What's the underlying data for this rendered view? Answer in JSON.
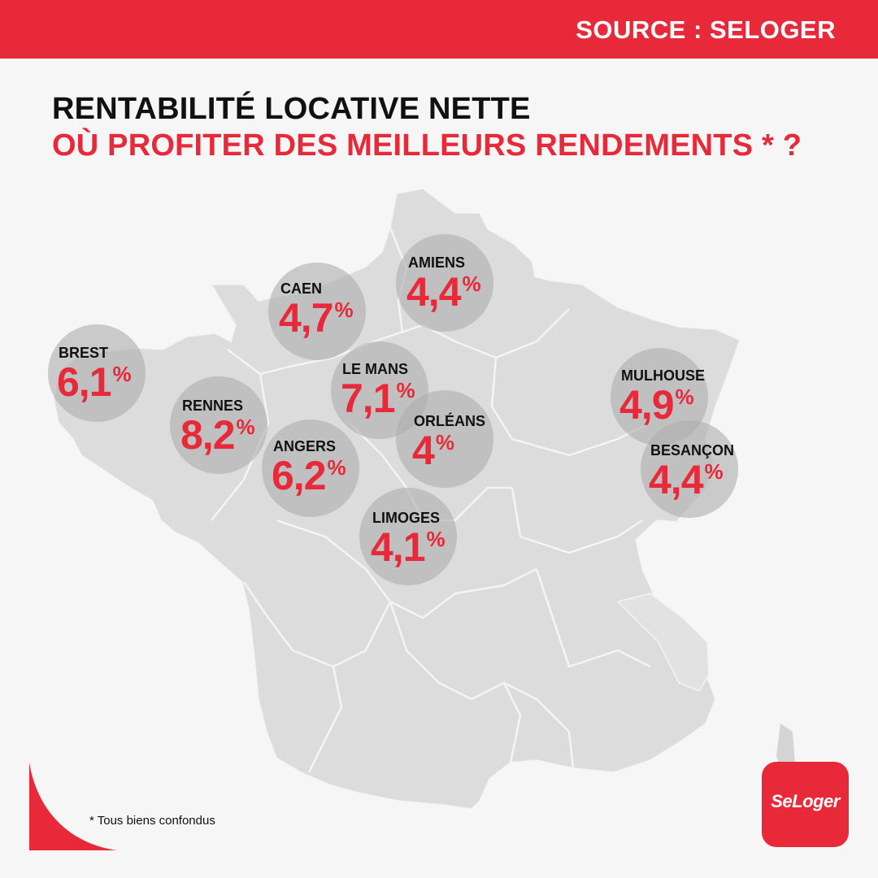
{
  "header": {
    "source": "SOURCE : SELOGER"
  },
  "title": {
    "line1": "RENTABILITÉ LOCATIVE NETTE",
    "line2": "OÙ PROFITER DES MEILLEURS RENDEMENTS * ?"
  },
  "cities": [
    {
      "name": "BREST",
      "value": "6,1",
      "unit": "%"
    },
    {
      "name": "CAEN",
      "value": "4,7",
      "unit": "%"
    },
    {
      "name": "AMIENS",
      "value": "4,4",
      "unit": "%"
    },
    {
      "name": "RENNES",
      "value": "8,2",
      "unit": "%"
    },
    {
      "name": "LE MANS",
      "value": "7,1",
      "unit": "%"
    },
    {
      "name": "ANGERS",
      "value": "6,2",
      "unit": "%"
    },
    {
      "name": "ORLÉANS",
      "value": "4",
      "unit": "%"
    },
    {
      "name": "LIMOGES",
      "value": "4,1",
      "unit": "%"
    },
    {
      "name": "MULHOUSE",
      "value": "4,9",
      "unit": "%"
    },
    {
      "name": "BESANÇON",
      "value": "4,4",
      "unit": "%"
    }
  ],
  "footnote": "* Tous biens confondus",
  "logo": {
    "text": "SeLoger"
  },
  "colors": {
    "accent": "#e8293a",
    "map": "#dcdcdc",
    "background": "#f6f6f6"
  }
}
